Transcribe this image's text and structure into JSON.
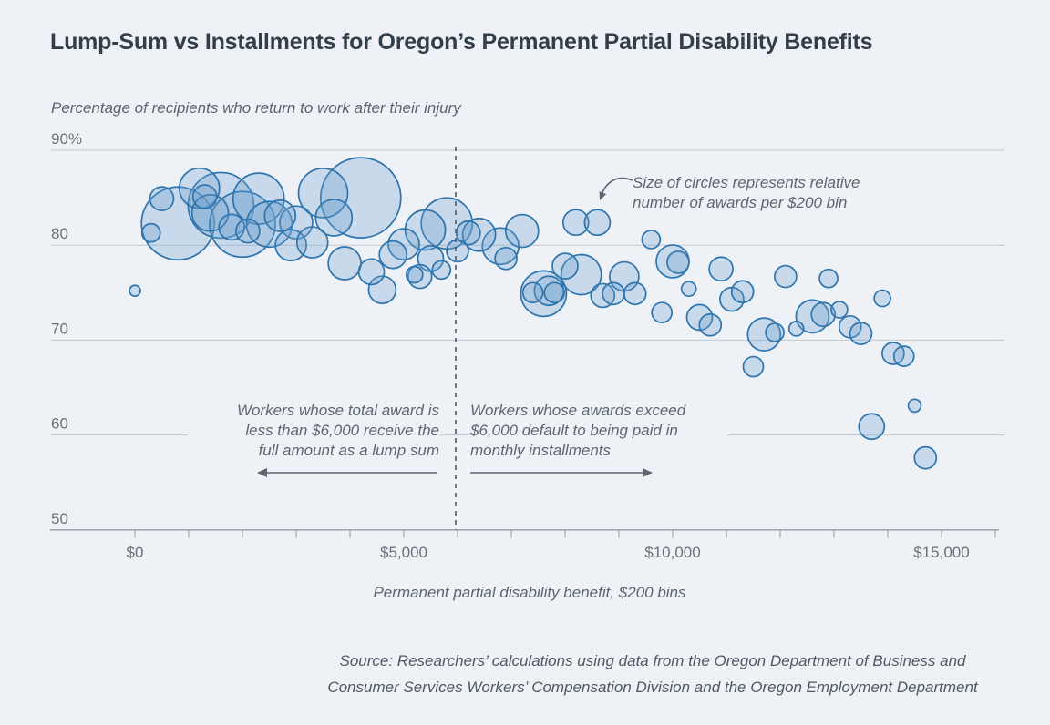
{
  "header": {
    "title": "Lump-Sum vs Installments for Oregon’s Permanent Partial Disability Benefits"
  },
  "chart_data": {
    "type": "scatter",
    "title": "Lump-Sum vs Installments for Oregon’s Permanent Partial Disability Benefits",
    "ylabel": "Percentage of recipients who return to work after their injury",
    "xlabel": "Permanent partial disability benefit, $200 bins",
    "ylim": [
      50,
      90
    ],
    "xlim": [
      0,
      16000
    ],
    "grid": true,
    "x_bin_width": 200,
    "y_ticks": [
      {
        "value": 90,
        "label": "90%"
      },
      {
        "value": 80,
        "label": "80"
      },
      {
        "value": 70,
        "label": "70"
      },
      {
        "value": 60,
        "label": "60"
      },
      {
        "value": 50,
        "label": "50"
      }
    ],
    "x_ticks_labeled": [
      {
        "value": 0,
        "label": "$0"
      },
      {
        "value": 5000,
        "label": "$5,000"
      },
      {
        "value": 10000,
        "label": "$10,000"
      },
      {
        "value": 15000,
        "label": "$15,000"
      }
    ],
    "x_minor_tick_step": 1000,
    "threshold": {
      "x": 6000,
      "style": "dashed",
      "meaning": "lump-sum / installment cutoff"
    },
    "point_format": "[benefit dollars, percent returning to work, bubble radius px (relative number of awards)]",
    "series": [
      {
        "name": "Return-to-work rate by $200 benefit bin",
        "points": [
          [
            0,
            75.2,
            6
          ],
          [
            300,
            81.3,
            10
          ],
          [
            500,
            84.9,
            13
          ],
          [
            800,
            82.3,
            40
          ],
          [
            1200,
            86.0,
            22
          ],
          [
            1300,
            85.1,
            13
          ],
          [
            1400,
            83.4,
            20
          ],
          [
            1600,
            84.2,
            36
          ],
          [
            1800,
            81.9,
            14
          ],
          [
            2000,
            82.2,
            36
          ],
          [
            2100,
            81.5,
            13
          ],
          [
            2300,
            84.9,
            28
          ],
          [
            2500,
            82.2,
            25
          ],
          [
            2700,
            83.1,
            17
          ],
          [
            2900,
            80.0,
            17
          ],
          [
            3000,
            82.4,
            18
          ],
          [
            3300,
            80.3,
            17
          ],
          [
            3500,
            85.5,
            27
          ],
          [
            3700,
            82.9,
            20
          ],
          [
            3900,
            78.1,
            18
          ],
          [
            4200,
            85.0,
            44
          ],
          [
            4400,
            77.2,
            14
          ],
          [
            4600,
            75.3,
            15
          ],
          [
            4800,
            79.0,
            15
          ],
          [
            5000,
            80.1,
            17
          ],
          [
            5200,
            76.9,
            9
          ],
          [
            5300,
            76.7,
            13
          ],
          [
            5400,
            81.6,
            22
          ],
          [
            5500,
            78.6,
            14
          ],
          [
            5700,
            77.4,
            10
          ],
          [
            5800,
            82.3,
            28
          ],
          [
            6000,
            79.4,
            12
          ],
          [
            6200,
            81.3,
            13
          ],
          [
            6400,
            81.1,
            18
          ],
          [
            6800,
            79.9,
            20
          ],
          [
            6900,
            78.6,
            12
          ],
          [
            7200,
            81.5,
            18
          ],
          [
            7400,
            75.0,
            11
          ],
          [
            7600,
            74.9,
            25
          ],
          [
            7700,
            75.2,
            16
          ],
          [
            7800,
            75.0,
            11
          ],
          [
            8000,
            77.8,
            14
          ],
          [
            8200,
            82.4,
            14
          ],
          [
            8300,
            76.9,
            22
          ],
          [
            8600,
            82.4,
            14
          ],
          [
            8700,
            74.7,
            13
          ],
          [
            8900,
            74.9,
            12
          ],
          [
            9100,
            76.7,
            16
          ],
          [
            9300,
            74.9,
            12
          ],
          [
            9600,
            80.6,
            10
          ],
          [
            9800,
            72.9,
            11
          ],
          [
            10000,
            78.3,
            18
          ],
          [
            10100,
            78.2,
            12
          ],
          [
            10300,
            75.4,
            8
          ],
          [
            10500,
            72.4,
            14
          ],
          [
            10700,
            71.6,
            12
          ],
          [
            10900,
            77.5,
            13
          ],
          [
            11100,
            74.3,
            13
          ],
          [
            11300,
            75.1,
            12
          ],
          [
            11500,
            67.2,
            11
          ],
          [
            11700,
            70.6,
            18
          ],
          [
            11900,
            70.8,
            10
          ],
          [
            12100,
            76.7,
            12
          ],
          [
            12300,
            71.2,
            8
          ],
          [
            12600,
            72.5,
            18
          ],
          [
            12800,
            72.7,
            13
          ],
          [
            12900,
            76.5,
            10
          ],
          [
            13100,
            73.2,
            9
          ],
          [
            13300,
            71.4,
            12
          ],
          [
            13500,
            70.7,
            12
          ],
          [
            13700,
            60.9,
            14
          ],
          [
            13900,
            74.4,
            9
          ],
          [
            14100,
            68.6,
            12
          ],
          [
            14300,
            68.3,
            11
          ],
          [
            14500,
            63.1,
            7
          ],
          [
            14700,
            57.6,
            12
          ]
        ]
      }
    ]
  },
  "annotations": {
    "size_note": "Size of circles represents relative\nnumber of awards per $200 bin",
    "lump_sum_note": "Workers whose total award is\nless than $6,000 receive the\nfull amount as a lump sum",
    "installments_note": "Workers whose awards exceed\n$6,000 default to being paid in\nmonthly installments"
  },
  "source": {
    "text": "Source: Researchers’ calculations using data from the Oregon Department of Business and\nConsumer Services Workers’ Compensation Division and the Oregon Employment Department"
  },
  "colors": {
    "background": "#eef2f7",
    "bubble_stroke": "#2e74ad",
    "bubble_fill": "rgba(110,160,205,0.30)",
    "gridline": "#c2c8ce",
    "axis_line": "#949ca3",
    "tick_label": "#6a7278",
    "title_text": "#333e48",
    "annotation_text": "#5d666e",
    "dashed_line": "#4d5863"
  }
}
